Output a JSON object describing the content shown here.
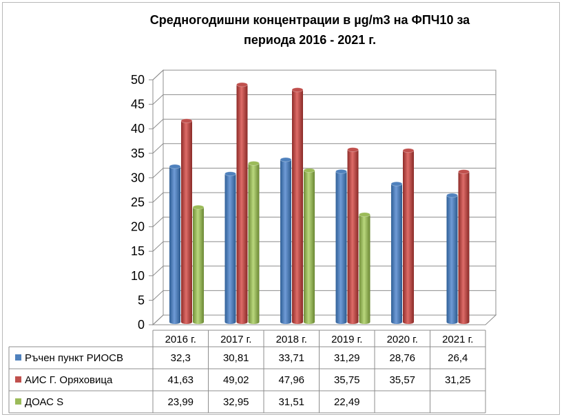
{
  "chart_data": {
    "type": "bar",
    "title_line1": "Средногодишни концентрации в µg/m3 на ФПЧ10 за",
    "title_line2": "периода 2016 - 2021 г.",
    "categories": [
      "2016 г.",
      "2017 г.",
      "2018 г.",
      "2019 г.",
      "2020 г.",
      "2021 г."
    ],
    "series": [
      {
        "name": "Ръчен пункт РИОСВ",
        "color": "#4f81bd",
        "values": [
          32.3,
          30.81,
          33.71,
          31.29,
          28.76,
          26.4
        ],
        "labels": [
          "32,3",
          "30,81",
          "33,71",
          "31,29",
          "28,76",
          "26,4"
        ]
      },
      {
        "name": "АИС Г. Оряховица",
        "color": "#c0504d",
        "values": [
          41.63,
          49.02,
          47.96,
          35.75,
          35.57,
          31.25
        ],
        "labels": [
          "41,63",
          "49,02",
          "47,96",
          "35,75",
          "35,57",
          "31,25"
        ]
      },
      {
        "name": "ДОАС S",
        "color": "#9bbb59",
        "values": [
          23.99,
          32.95,
          31.51,
          22.49,
          null,
          null
        ],
        "labels": [
          "23,99",
          "32,95",
          "31,51",
          "22,49",
          "",
          ""
        ]
      }
    ],
    "ylim": [
      0,
      50
    ],
    "yticks": [
      0,
      5,
      10,
      15,
      20,
      25,
      30,
      35,
      40,
      45,
      50
    ],
    "grid": true,
    "legend": "data-table"
  }
}
